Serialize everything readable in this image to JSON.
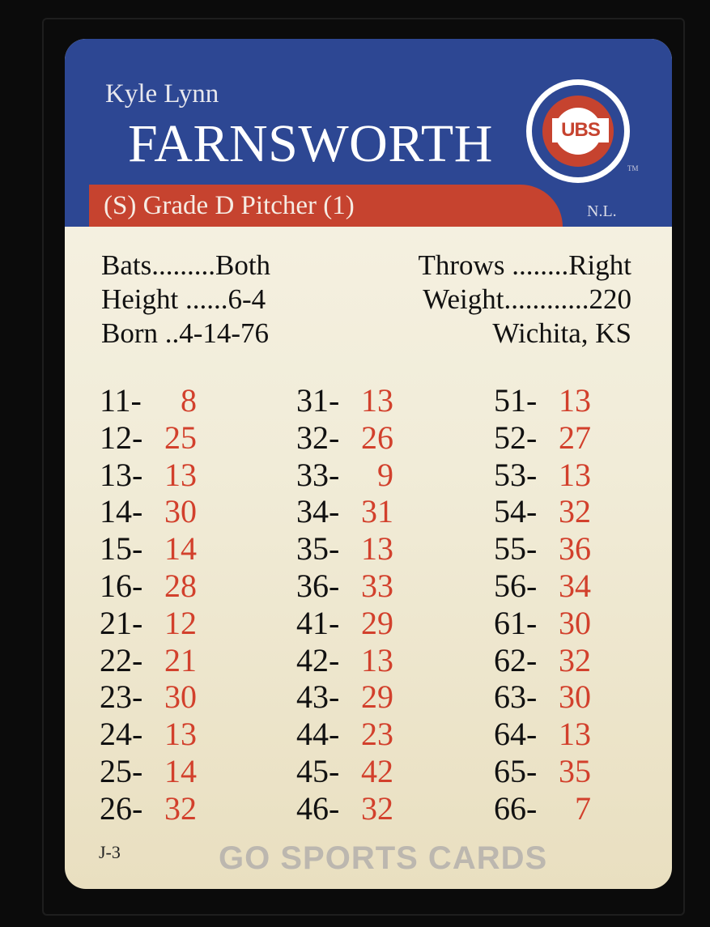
{
  "player": {
    "first_names": "Kyle Lynn",
    "last_name": "FARNSWORTH",
    "grade_line": "(S) Grade D Pitcher (1)",
    "league": "N.L.",
    "team_logo": "cubs-logo",
    "logo_text": "UBS",
    "trademark": "TM"
  },
  "bio": {
    "bats": "Bats.........Both",
    "throws": "Throws ........Right",
    "height": "Height ......6-4",
    "weight": "Weight............220",
    "born": "Born ..4-14-76",
    "birthplace": "Wichita, KS"
  },
  "columns": [
    [
      {
        "k": "11-",
        "v": "8"
      },
      {
        "k": "12-",
        "v": "25"
      },
      {
        "k": "13-",
        "v": "13"
      },
      {
        "k": "14-",
        "v": "30"
      },
      {
        "k": "15-",
        "v": "14"
      },
      {
        "k": "16-",
        "v": "28"
      },
      {
        "k": "21-",
        "v": "12"
      },
      {
        "k": "22-",
        "v": "21"
      },
      {
        "k": "23-",
        "v": "30"
      },
      {
        "k": "24-",
        "v": "13"
      },
      {
        "k": "25-",
        "v": "14"
      },
      {
        "k": "26-",
        "v": "32"
      }
    ],
    [
      {
        "k": "31-",
        "v": "13"
      },
      {
        "k": "32-",
        "v": "26"
      },
      {
        "k": "33-",
        "v": "9"
      },
      {
        "k": "34-",
        "v": "31"
      },
      {
        "k": "35-",
        "v": "13"
      },
      {
        "k": "36-",
        "v": "33"
      },
      {
        "k": "41-",
        "v": "29"
      },
      {
        "k": "42-",
        "v": "13"
      },
      {
        "k": "43-",
        "v": "29"
      },
      {
        "k": "44-",
        "v": "23"
      },
      {
        "k": "45-",
        "v": "42"
      },
      {
        "k": "46-",
        "v": "32"
      }
    ],
    [
      {
        "k": "51-",
        "v": "13"
      },
      {
        "k": "52-",
        "v": "27"
      },
      {
        "k": "53-",
        "v": "13"
      },
      {
        "k": "54-",
        "v": "32"
      },
      {
        "k": "55-",
        "v": "36"
      },
      {
        "k": "56-",
        "v": "34"
      },
      {
        "k": "61-",
        "v": "30"
      },
      {
        "k": "62-",
        "v": "32"
      },
      {
        "k": "63-",
        "v": "30"
      },
      {
        "k": "64-",
        "v": "13"
      },
      {
        "k": "65-",
        "v": "35"
      },
      {
        "k": "66-",
        "v": "7"
      }
    ]
  ],
  "card_code": "J-3",
  "watermark": "GO SPORTS CARDS",
  "colors": {
    "header_blue": "#2d4793",
    "accent_red": "#c6432f",
    "result_red": "#d2402c",
    "card_cream": "#f3eedc"
  }
}
